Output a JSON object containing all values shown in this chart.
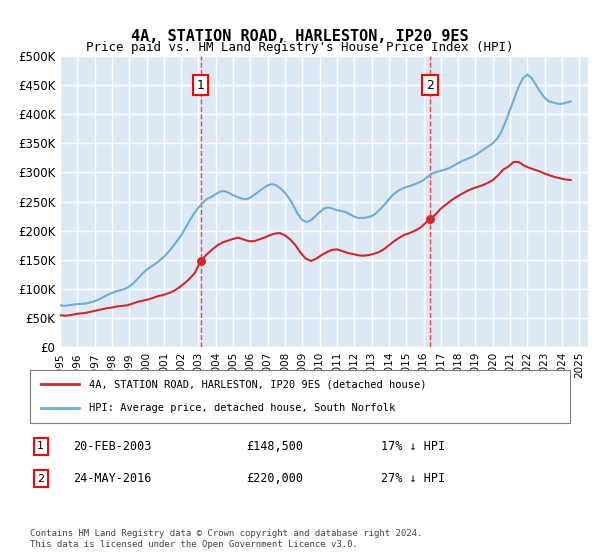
{
  "title": "4A, STATION ROAD, HARLESTON, IP20 9ES",
  "subtitle": "Price paid vs. HM Land Registry's House Price Index (HPI)",
  "ylim": [
    0,
    500000
  ],
  "yticks": [
    0,
    50000,
    100000,
    150000,
    200000,
    250000,
    300000,
    350000,
    400000,
    450000,
    500000
  ],
  "ytick_labels": [
    "£0",
    "£50K",
    "£100K",
    "£150K",
    "£200K",
    "£250K",
    "£300K",
    "£350K",
    "£400K",
    "£450K",
    "£500K"
  ],
  "xlabel_years": [
    "1995",
    "1996",
    "1997",
    "1998",
    "1999",
    "2000",
    "2001",
    "2002",
    "2003",
    "2004",
    "2005",
    "2006",
    "2007",
    "2008",
    "2009",
    "2010",
    "2011",
    "2012",
    "2013",
    "2014",
    "2015",
    "2016",
    "2017",
    "2018",
    "2019",
    "2020",
    "2021",
    "2022",
    "2023",
    "2024",
    "2025"
  ],
  "bg_color": "#dce9f5",
  "grid_color": "#ffffff",
  "hpi_color": "#6baed6",
  "price_color": "#d62728",
  "marker1_date": "20-FEB-2003",
  "marker1_price": 148500,
  "marker1_hpi_pct": "17% ↓ HPI",
  "marker2_date": "24-MAY-2016",
  "marker2_price": 220000,
  "marker2_hpi_pct": "27% ↓ HPI",
  "legend_label1": "4A, STATION ROAD, HARLESTON, IP20 9ES (detached house)",
  "legend_label2": "HPI: Average price, detached house, South Norfolk",
  "footer": "Contains HM Land Registry data © Crown copyright and database right 2024.\nThis data is licensed under the Open Government Licence v3.0.",
  "hpi_data_x": [
    1995.0,
    1995.25,
    1995.5,
    1995.75,
    1996.0,
    1996.25,
    1996.5,
    1996.75,
    1997.0,
    1997.25,
    1997.5,
    1997.75,
    1998.0,
    1998.25,
    1998.5,
    1998.75,
    1999.0,
    1999.25,
    1999.5,
    1999.75,
    2000.0,
    2000.25,
    2000.5,
    2000.75,
    2001.0,
    2001.25,
    2001.5,
    2001.75,
    2002.0,
    2002.25,
    2002.5,
    2002.75,
    2003.0,
    2003.25,
    2003.5,
    2003.75,
    2004.0,
    2004.25,
    2004.5,
    2004.75,
    2005.0,
    2005.25,
    2005.5,
    2005.75,
    2006.0,
    2006.25,
    2006.5,
    2006.75,
    2007.0,
    2007.25,
    2007.5,
    2007.75,
    2008.0,
    2008.25,
    2008.5,
    2008.75,
    2009.0,
    2009.25,
    2009.5,
    2009.75,
    2010.0,
    2010.25,
    2010.5,
    2010.75,
    2011.0,
    2011.25,
    2011.5,
    2011.75,
    2012.0,
    2012.25,
    2012.5,
    2012.75,
    2013.0,
    2013.25,
    2013.5,
    2013.75,
    2014.0,
    2014.25,
    2014.5,
    2014.75,
    2015.0,
    2015.25,
    2015.5,
    2015.75,
    2016.0,
    2016.25,
    2016.5,
    2016.75,
    2017.0,
    2017.25,
    2017.5,
    2017.75,
    2018.0,
    2018.25,
    2018.5,
    2018.75,
    2019.0,
    2019.25,
    2019.5,
    2019.75,
    2020.0,
    2020.25,
    2020.5,
    2020.75,
    2021.0,
    2021.25,
    2021.5,
    2021.75,
    2022.0,
    2022.25,
    2022.5,
    2022.75,
    2023.0,
    2023.25,
    2023.5,
    2023.75,
    2024.0,
    2024.25,
    2024.5
  ],
  "hpi_data_y": [
    72000,
    71000,
    72000,
    73000,
    74000,
    74500,
    75000,
    77000,
    79000,
    82000,
    86000,
    90000,
    93000,
    96000,
    98000,
    100000,
    104000,
    110000,
    118000,
    126000,
    133000,
    138000,
    143000,
    149000,
    155000,
    163000,
    172000,
    182000,
    192000,
    205000,
    218000,
    230000,
    240000,
    248000,
    255000,
    258000,
    263000,
    267000,
    268000,
    265000,
    261000,
    258000,
    255000,
    254000,
    257000,
    262000,
    268000,
    273000,
    278000,
    280000,
    278000,
    272000,
    265000,
    255000,
    242000,
    228000,
    218000,
    215000,
    218000,
    225000,
    232000,
    238000,
    240000,
    238000,
    235000,
    234000,
    232000,
    228000,
    224000,
    222000,
    222000,
    223000,
    225000,
    230000,
    237000,
    245000,
    254000,
    262000,
    268000,
    272000,
    275000,
    277000,
    280000,
    283000,
    287000,
    293000,
    298000,
    301000,
    303000,
    305000,
    308000,
    312000,
    316000,
    320000,
    323000,
    326000,
    330000,
    335000,
    340000,
    345000,
    350000,
    358000,
    370000,
    388000,
    408000,
    428000,
    448000,
    462000,
    468000,
    462000,
    450000,
    438000,
    428000,
    422000,
    420000,
    418000,
    418000,
    420000,
    422000
  ],
  "price_data_x": [
    1995.0,
    1995.3,
    1995.6,
    1995.9,
    1996.2,
    1996.5,
    1996.8,
    1997.1,
    1997.4,
    1997.7,
    1998.0,
    1998.3,
    1998.6,
    1998.9,
    1999.2,
    1999.5,
    1999.8,
    2000.1,
    2000.4,
    2000.7,
    2001.0,
    2001.3,
    2001.6,
    2001.9,
    2002.2,
    2002.5,
    2002.8,
    2003.13,
    2003.5,
    2003.8,
    2004.1,
    2004.4,
    2004.7,
    2005.0,
    2005.3,
    2005.6,
    2005.9,
    2006.2,
    2006.5,
    2006.8,
    2007.1,
    2007.4,
    2007.7,
    2008.0,
    2008.3,
    2008.6,
    2008.9,
    2009.2,
    2009.5,
    2009.8,
    2010.1,
    2010.4,
    2010.7,
    2011.0,
    2011.3,
    2011.6,
    2011.9,
    2012.2,
    2012.5,
    2012.8,
    2013.1,
    2013.4,
    2013.7,
    2014.0,
    2014.3,
    2014.6,
    2014.9,
    2015.2,
    2015.5,
    2015.8,
    2016.38,
    2016.7,
    2017.0,
    2017.3,
    2017.6,
    2017.9,
    2018.2,
    2018.5,
    2018.8,
    2019.1,
    2019.4,
    2019.7,
    2020.0,
    2020.3,
    2020.6,
    2020.9,
    2021.2,
    2021.5,
    2021.8,
    2022.1,
    2022.4,
    2022.7,
    2023.0,
    2023.3,
    2023.6,
    2023.9,
    2024.2,
    2024.5
  ],
  "price_data_y": [
    55000,
    54000,
    55000,
    57000,
    58000,
    59000,
    61000,
    63000,
    65000,
    67000,
    68000,
    70000,
    71000,
    72000,
    75000,
    78000,
    80000,
    82000,
    85000,
    88000,
    90000,
    93000,
    97000,
    103000,
    110000,
    118000,
    128000,
    148500,
    160000,
    168000,
    175000,
    180000,
    183000,
    186000,
    188000,
    185000,
    182000,
    182000,
    185000,
    188000,
    192000,
    195000,
    196000,
    192000,
    185000,
    175000,
    162000,
    152000,
    148000,
    152000,
    158000,
    163000,
    167000,
    168000,
    165000,
    162000,
    160000,
    158000,
    157000,
    158000,
    160000,
    163000,
    168000,
    175000,
    182000,
    188000,
    193000,
    196000,
    200000,
    205000,
    220000,
    228000,
    238000,
    245000,
    252000,
    258000,
    263000,
    268000,
    272000,
    275000,
    278000,
    282000,
    287000,
    295000,
    305000,
    310000,
    318000,
    318000,
    312000,
    308000,
    305000,
    302000,
    298000,
    295000,
    292000,
    290000,
    288000,
    287000
  ]
}
